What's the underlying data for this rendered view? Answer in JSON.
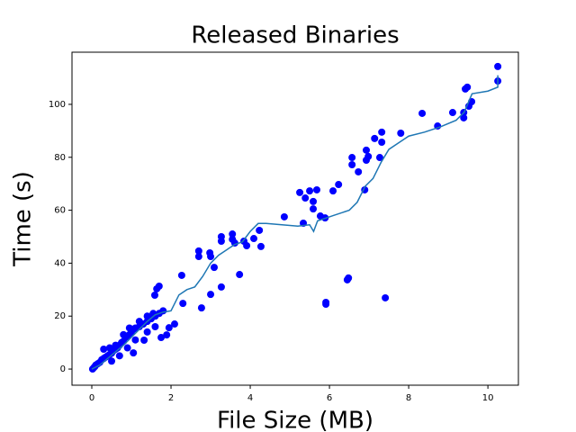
{
  "chart_data": {
    "type": "scatter",
    "title": "Released Binaries",
    "x_label": "File Size (MB)",
    "y_label": "Time (s)",
    "xlim": [
      -0.5,
      10.77
    ],
    "ylim": [
      -6.1,
      119.7
    ],
    "xticks": [
      0,
      2,
      4,
      6,
      8,
      10
    ],
    "yticks": [
      0,
      20,
      40,
      60,
      80,
      100
    ],
    "series": [
      {
        "type": "scatter",
        "color": "#0000ff",
        "x": [
          10.25,
          10.25,
          9.43,
          9.48,
          9.59,
          9.52,
          9.39,
          9.39,
          9.11,
          8.73,
          8.34,
          7.8,
          7.32,
          7.14,
          7.32,
          6.93,
          6.98,
          6.93,
          6.57,
          6.57,
          6.73,
          7.27,
          6.89,
          6.23,
          6.09,
          5.68,
          5.5,
          5.25,
          5.39,
          5.59,
          5.59,
          5.77,
          5.89,
          5.34,
          4.86,
          4.23,
          4.27,
          4.09,
          3.84,
          3.91,
          3.55,
          3.55,
          3.61,
          3.27,
          3.27,
          3.73,
          3.27,
          3.09,
          3.0,
          2.98,
          2.7,
          2.7,
          3.0,
          2.77,
          2.27,
          2.3,
          2.09,
          1.95,
          1.89,
          1.75,
          1.7,
          1.64,
          1.59,
          1.32,
          1.05,
          6.48,
          6.45,
          5.91,
          5.91,
          7.41,
          0.02,
          0.05,
          0.08,
          0.1,
          0.15,
          0.2,
          0.25,
          0.3,
          0.35,
          0.4,
          0.45,
          0.5,
          0.55,
          0.6,
          0.65,
          0.7,
          0.75,
          0.8,
          0.85,
          0.9,
          0.95,
          1.0,
          1.05,
          1.1,
          1.2,
          1.3,
          1.4,
          1.5,
          1.6,
          1.7,
          1.8,
          0.3,
          0.45,
          0.6,
          0.8,
          0.95,
          1.2,
          1.4,
          1.55,
          0.5,
          0.7,
          0.9,
          1.1,
          1.4,
          1.6
        ],
        "y": [
          114.3,
          108.8,
          105.8,
          106.5,
          101,
          99.3,
          96.9,
          94.9,
          96.9,
          91.8,
          96.6,
          89.1,
          89.5,
          87.1,
          85.7,
          82.7,
          80.3,
          78.9,
          79.9,
          77.2,
          74.5,
          79.9,
          67.7,
          69.7,
          67.3,
          67.7,
          67.3,
          66.7,
          64.6,
          63.3,
          60.5,
          57.8,
          57.1,
          55.1,
          57.5,
          52.4,
          46.3,
          49.3,
          48.3,
          46.6,
          51,
          49,
          47.6,
          50,
          48.3,
          35.7,
          31,
          38.4,
          42.5,
          43.9,
          44.6,
          42.5,
          28.2,
          23.1,
          35.4,
          24.8,
          17,
          15.6,
          12.9,
          11.9,
          31.3,
          30.3,
          27.9,
          10.9,
          6.1,
          34.4,
          33.7,
          25.2,
          24.5,
          26.9,
          0,
          0.5,
          1,
          1.5,
          2,
          2.5,
          3.5,
          4,
          4.5,
          5,
          5.5,
          6,
          7,
          7.5,
          8,
          9,
          10,
          10.5,
          12,
          12.5,
          13,
          14,
          15,
          15.5,
          16,
          17,
          18,
          19,
          20,
          21,
          22,
          7.5,
          8,
          9,
          13,
          15.5,
          18,
          20,
          21,
          3,
          5,
          8,
          11,
          14,
          16
        ]
      },
      {
        "type": "line",
        "color": "#1f77b4",
        "x": [
          0,
          0.2,
          0.4,
          0.6,
          0.8,
          1.0,
          1.2,
          1.4,
          1.6,
          1.8,
          2.0,
          2.2,
          2.4,
          2.6,
          2.8,
          3.0,
          3.2,
          3.4,
          3.6,
          3.8,
          4.0,
          4.2,
          4.4,
          4.8,
          5.2,
          5.5,
          5.6,
          5.7,
          5.9,
          6.1,
          6.5,
          6.7,
          6.9,
          7.1,
          7.3,
          7.5,
          7.8,
          8.0,
          8.4,
          8.8,
          9.2,
          9.4,
          9.6,
          10.0,
          10.25,
          10.25
        ],
        "y": [
          0,
          1.5,
          4,
          6.5,
          9,
          12,
          15,
          18,
          20.5,
          21.5,
          22,
          28,
          30,
          31,
          35,
          40,
          43,
          45,
          47,
          48,
          52,
          55,
          55,
          54.5,
          54,
          54.5,
          52,
          56,
          57,
          58,
          60,
          63,
          69,
          72,
          78,
          83,
          86,
          88,
          89.5,
          91.5,
          94,
          97,
          104,
          105,
          106.5,
          111
        ]
      }
    ]
  }
}
